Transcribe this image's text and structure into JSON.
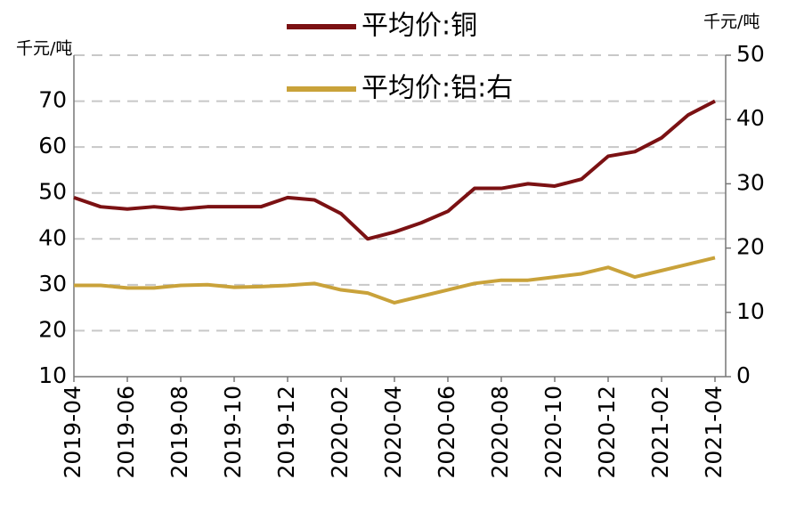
{
  "chart_data": {
    "type": "line",
    "y_label": "千元/吨",
    "y2_label": "千元/吨",
    "x": [
      "2019-04",
      "2019-05",
      "2019-06",
      "2019-07",
      "2019-08",
      "2019-09",
      "2019-10",
      "2019-11",
      "2019-12",
      "2020-01",
      "2020-02",
      "2020-03",
      "2020-04",
      "2020-05",
      "2020-06",
      "2020-07",
      "2020-08",
      "2020-09",
      "2020-10",
      "2020-11",
      "2020-12",
      "2021-01",
      "2021-02",
      "2021-03",
      "2021-04"
    ],
    "series": [
      {
        "name": "平均价:铜",
        "color": "#7b1113",
        "values": [
          49,
          47,
          46.5,
          47,
          46.5,
          47,
          47,
          47,
          49,
          48.5,
          45.5,
          40,
          41.5,
          43.5,
          46,
          51,
          51,
          52,
          51.5,
          53,
          58,
          59,
          62,
          67,
          70
        ]
      },
      {
        "name": "平均价:铝:右",
        "color": "#c9a23a",
        "axis": "y2",
        "values": [
          14.2,
          14.2,
          13.8,
          13.8,
          14.2,
          14.3,
          13.9,
          14,
          14.2,
          14.5,
          13.5,
          13,
          11.5,
          12.5,
          13.5,
          14.5,
          15,
          15,
          15.5,
          16,
          17,
          15.5,
          16.5,
          17.5,
          18.5
        ]
      }
    ],
    "ylim": [
      10,
      80
    ],
    "yticks": [
      10,
      20,
      30,
      40,
      50,
      60,
      70
    ],
    "y2lim": [
      0,
      50
    ],
    "y2ticks": [
      0,
      10,
      20,
      30,
      40,
      50
    ],
    "grid": true
  }
}
